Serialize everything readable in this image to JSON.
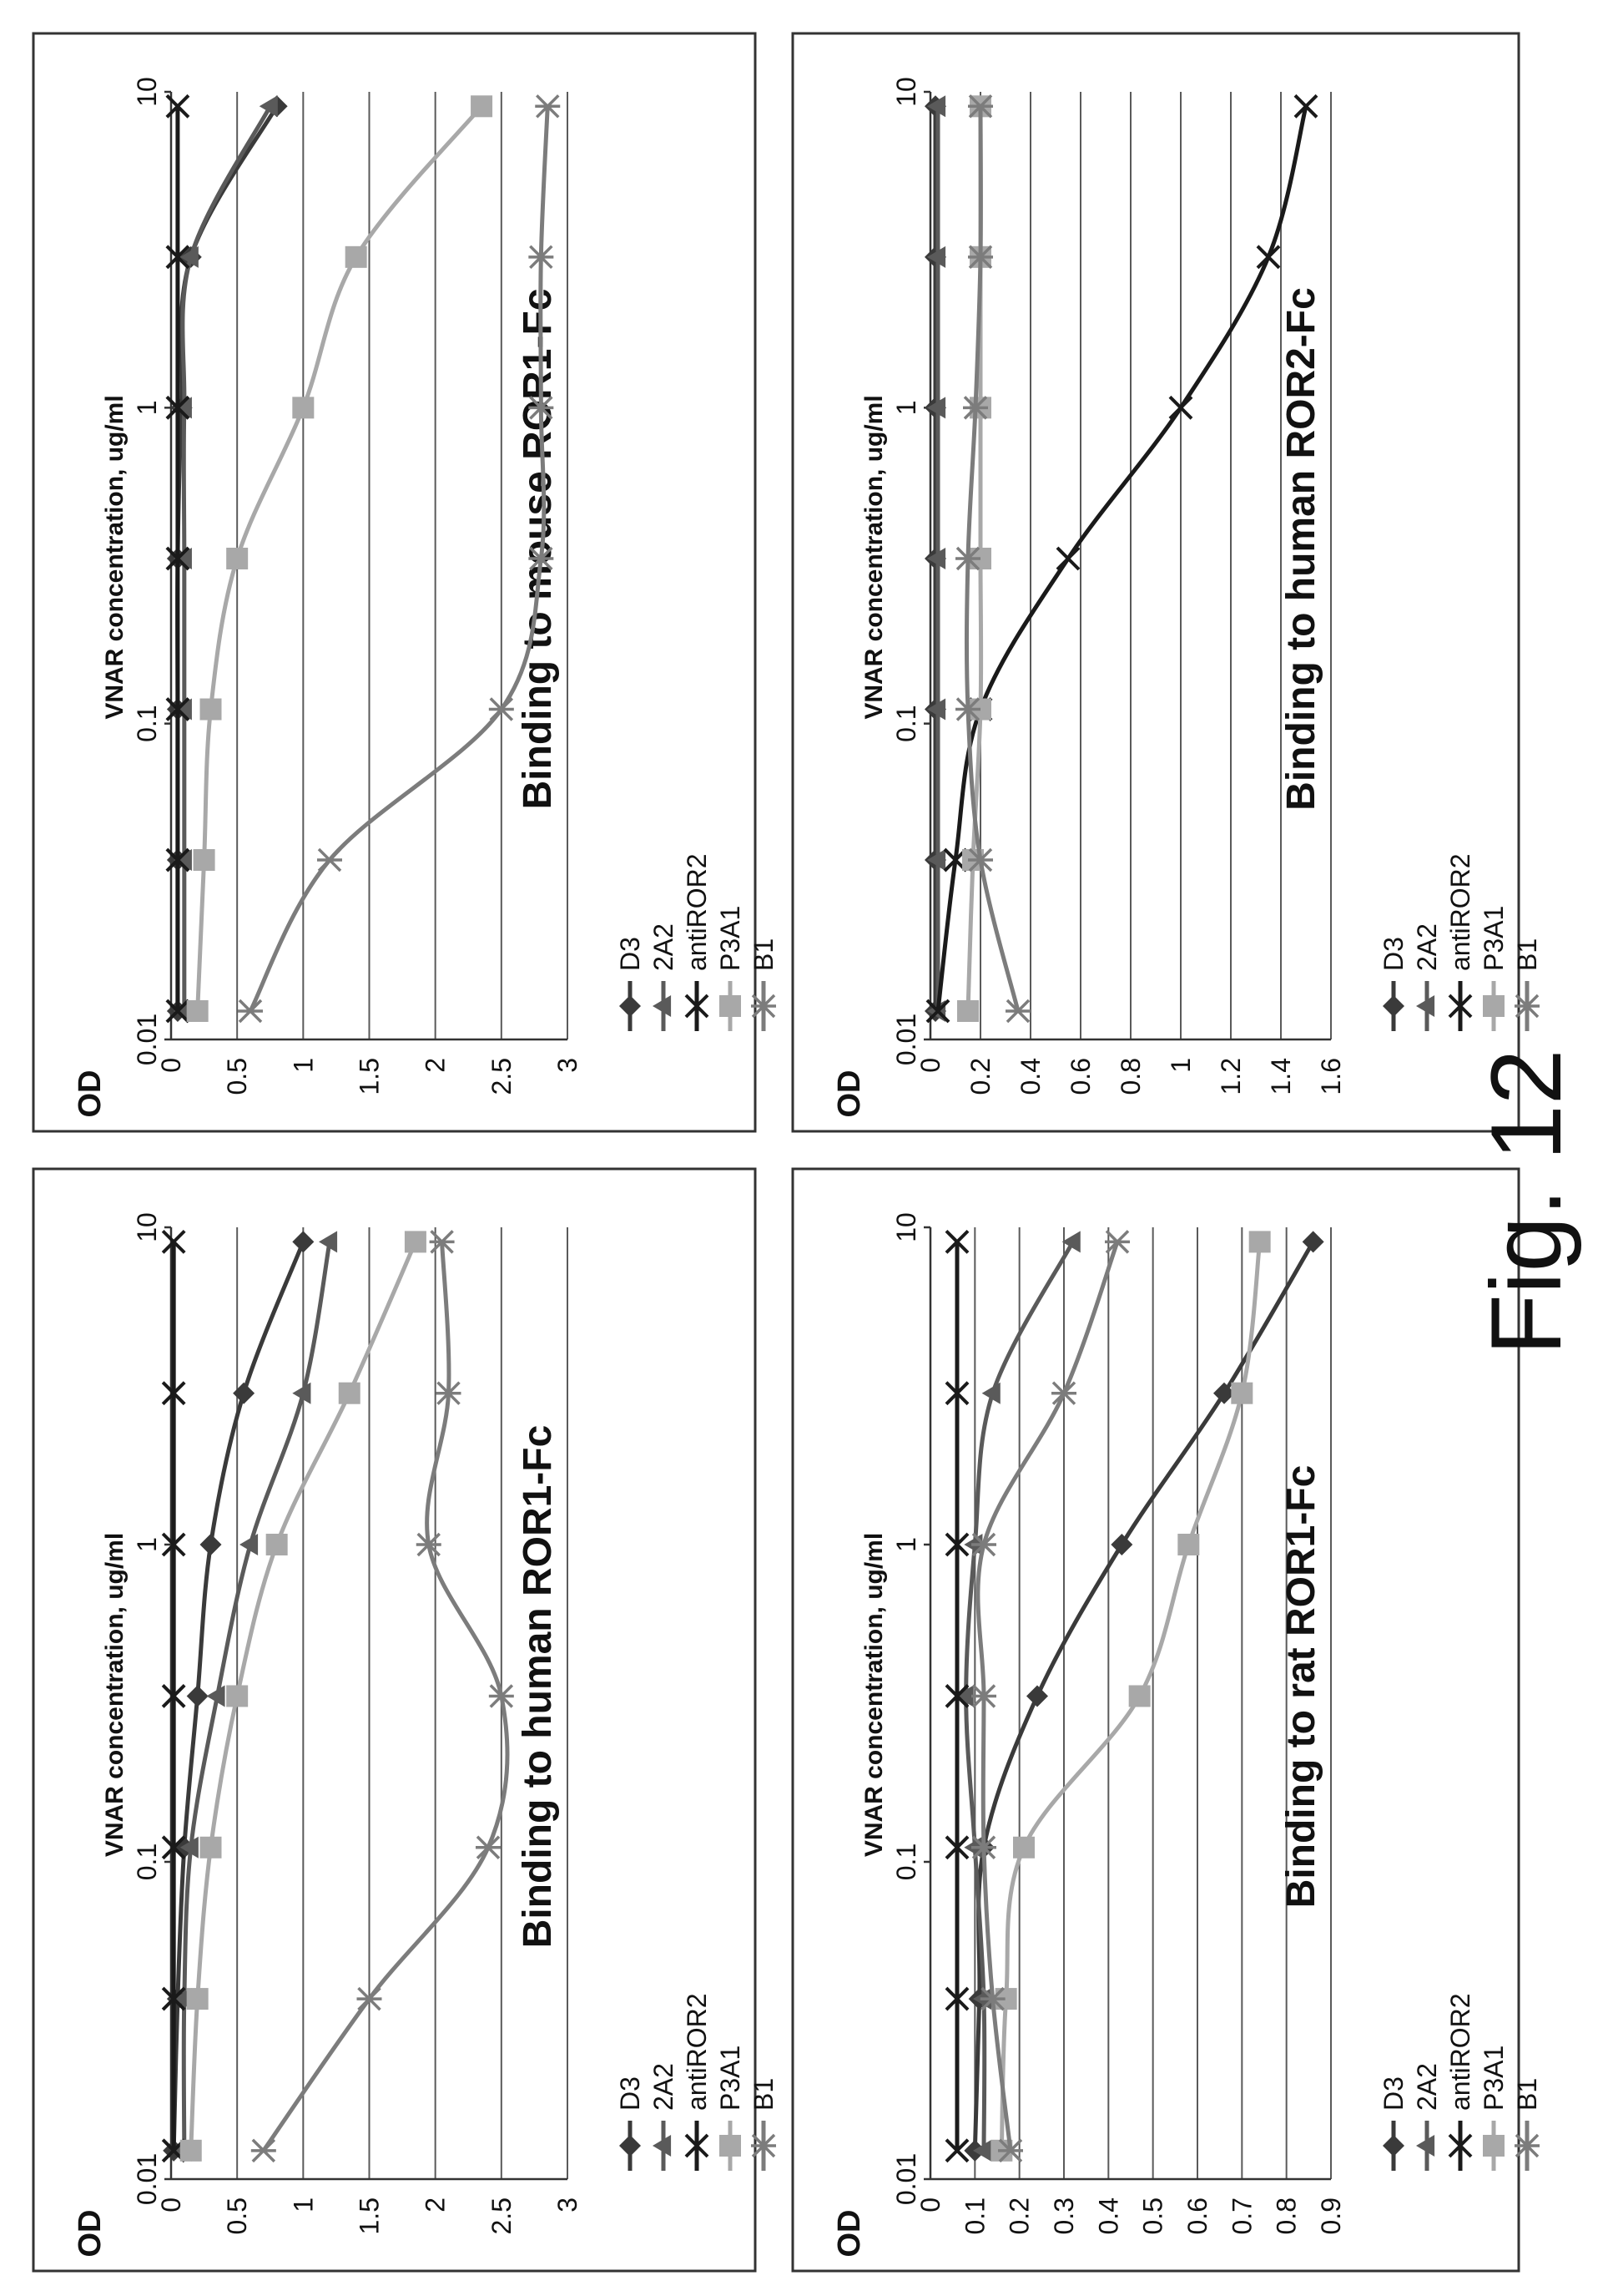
{
  "figure_caption": "Fig. 12",
  "chart_data": [
    {
      "type": "line",
      "title": "Binding to human ROR1-Fc",
      "xlabel": "VNAR concentration, ug/ml",
      "ylabel": "OD",
      "x_scale": "log",
      "x_ticks": [
        "0.01",
        "0.1",
        "1",
        "10"
      ],
      "y_ticks": [
        "0",
        "0.5",
        "1",
        "1.5",
        "2",
        "2.5",
        "3"
      ],
      "ylim": [
        0,
        3
      ],
      "grid": "horizontal",
      "legend_position": "right",
      "x": [
        0.0123,
        0.037,
        0.111,
        0.333,
        1,
        3,
        9
      ],
      "series": [
        {
          "name": "D3",
          "color": "#3a3a3a",
          "marker": "diamond",
          "values": [
            0.02,
            0.05,
            0.1,
            0.2,
            0.3,
            0.55,
            1.0
          ]
        },
        {
          "name": "2A2",
          "color": "#5a5a5a",
          "marker": "triangle",
          "values": [
            0.1,
            0.1,
            0.15,
            0.35,
            0.6,
            1.0,
            1.2
          ]
        },
        {
          "name": "antiROR2",
          "color": "#1a1a1a",
          "marker": "x",
          "values": [
            0.02,
            0.02,
            0.02,
            0.02,
            0.02,
            0.02,
            0.02
          ]
        },
        {
          "name": "P3A1",
          "color": "#a8a8a8",
          "marker": "square",
          "values": [
            0.15,
            0.2,
            0.3,
            0.5,
            0.8,
            1.35,
            1.85
          ]
        },
        {
          "name": "B1",
          "color": "#7c7c7c",
          "marker": "star",
          "values": [
            0.7,
            1.5,
            2.4,
            2.5,
            1.95,
            2.1,
            2.05
          ]
        }
      ]
    },
    {
      "type": "line",
      "title": "Binding to mouse ROR1-Fc",
      "xlabel": "VNAR concentration, ug/ml",
      "ylabel": "OD",
      "x_scale": "log",
      "x_ticks": [
        "0.01",
        "0.1",
        "1",
        "10"
      ],
      "y_ticks": [
        "0",
        "0.5",
        "1",
        "1.5",
        "2",
        "2.5",
        "3"
      ],
      "ylim": [
        0,
        3
      ],
      "grid": "horizontal",
      "legend_position": "right",
      "x": [
        0.0123,
        0.037,
        0.111,
        0.333,
        1,
        3,
        9
      ],
      "series": [
        {
          "name": "D3",
          "color": "#3a3a3a",
          "marker": "diamond",
          "values": [
            0.05,
            0.05,
            0.05,
            0.05,
            0.08,
            0.15,
            0.8
          ]
        },
        {
          "name": "2A2",
          "color": "#5a5a5a",
          "marker": "triangle",
          "values": [
            0.1,
            0.1,
            0.1,
            0.1,
            0.1,
            0.15,
            0.75
          ]
        },
        {
          "name": "antiROR2",
          "color": "#1a1a1a",
          "marker": "x",
          "values": [
            0.05,
            0.05,
            0.05,
            0.05,
            0.05,
            0.05,
            0.05
          ]
        },
        {
          "name": "P3A1",
          "color": "#a8a8a8",
          "marker": "square",
          "values": [
            0.2,
            0.25,
            0.3,
            0.5,
            1.0,
            1.4,
            2.35
          ]
        },
        {
          "name": "B1",
          "color": "#7c7c7c",
          "marker": "star",
          "values": [
            0.6,
            1.2,
            2.5,
            2.8,
            2.8,
            2.8,
            2.85
          ]
        }
      ]
    },
    {
      "type": "line",
      "title": "Binding to rat  ROR1-Fc",
      "xlabel": "VNAR concentration, ug/ml",
      "ylabel": "OD",
      "x_scale": "log",
      "x_ticks": [
        "0.01",
        "0.1",
        "1",
        "10"
      ],
      "y_ticks": [
        "0",
        "0.1",
        "0.2",
        "0.3",
        "0.4",
        "0.5",
        "0.6",
        "0.7",
        "0.8",
        "0.9"
      ],
      "ylim": [
        0,
        0.9
      ],
      "grid": "horizontal",
      "legend_position": "right",
      "x": [
        0.0123,
        0.037,
        0.111,
        0.333,
        1,
        3,
        9
      ],
      "series": [
        {
          "name": "D3",
          "color": "#3a3a3a",
          "marker": "diamond",
          "values": [
            0.1,
            0.11,
            0.12,
            0.24,
            0.43,
            0.66,
            0.86
          ]
        },
        {
          "name": "2A2",
          "color": "#5a5a5a",
          "marker": "triangle",
          "values": [
            0.12,
            0.12,
            0.1,
            0.08,
            0.1,
            0.14,
            0.32
          ]
        },
        {
          "name": "antiROR2",
          "color": "#1a1a1a",
          "marker": "x",
          "values": [
            0.06,
            0.06,
            0.06,
            0.06,
            0.06,
            0.06,
            0.06
          ]
        },
        {
          "name": "P3A1",
          "color": "#a8a8a8",
          "marker": "square",
          "values": [
            0.16,
            0.17,
            0.21,
            0.47,
            0.58,
            0.7,
            0.74
          ]
        },
        {
          "name": "B1",
          "color": "#7c7c7c",
          "marker": "star",
          "values": [
            0.18,
            0.14,
            0.12,
            0.12,
            0.12,
            0.3,
            0.42
          ]
        }
      ]
    },
    {
      "type": "line",
      "title": "Binding to human ROR2-Fc",
      "xlabel": "VNAR concentration, ug/ml",
      "ylabel": "OD",
      "x_scale": "log",
      "x_ticks": [
        "0.01",
        "0.1",
        "1",
        "10"
      ],
      "y_ticks": [
        "0",
        "0.2",
        "0.4",
        "0.6",
        "0.8",
        "1",
        "1.2",
        "1.4",
        "1.6"
      ],
      "ylim": [
        0,
        1.6
      ],
      "grid": "horizontal",
      "legend_position": "right",
      "x": [
        0.0123,
        0.037,
        0.111,
        0.333,
        1,
        3,
        9
      ],
      "series": [
        {
          "name": "D3",
          "color": "#3a3a3a",
          "marker": "diamond",
          "values": [
            0.02,
            0.02,
            0.02,
            0.02,
            0.02,
            0.02,
            0.02
          ]
        },
        {
          "name": "2A2",
          "color": "#5a5a5a",
          "marker": "triangle",
          "values": [
            0.03,
            0.03,
            0.03,
            0.03,
            0.03,
            0.03,
            0.03
          ]
        },
        {
          "name": "antiROR2",
          "color": "#1a1a1a",
          "marker": "x",
          "values": [
            0.03,
            0.1,
            0.2,
            0.55,
            1.0,
            1.35,
            1.5
          ]
        },
        {
          "name": "P3A1",
          "color": "#a8a8a8",
          "marker": "square",
          "values": [
            0.15,
            0.17,
            0.2,
            0.2,
            0.2,
            0.2,
            0.2
          ]
        },
        {
          "name": "B1",
          "color": "#7c7c7c",
          "marker": "star",
          "values": [
            0.35,
            0.2,
            0.15,
            0.15,
            0.18,
            0.2,
            0.2
          ]
        }
      ]
    }
  ]
}
